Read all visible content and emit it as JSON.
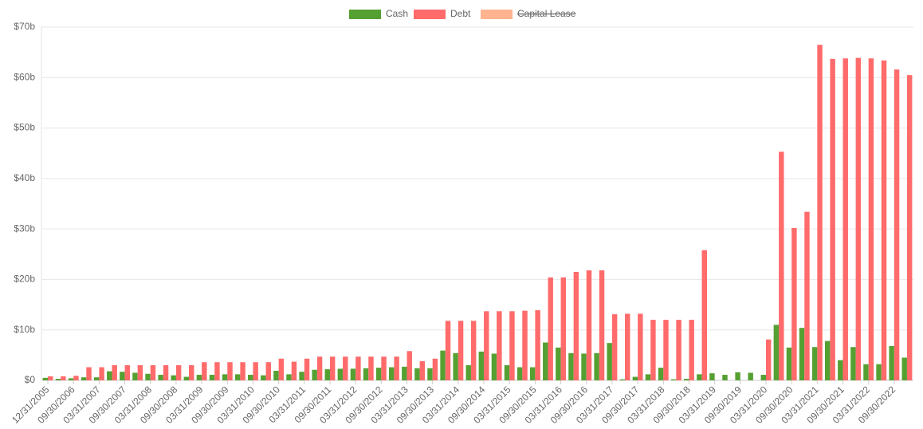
{
  "chart_data": {
    "type": "bar",
    "categories": [
      "12/31/2005",
      null,
      "09/30/2006",
      null,
      "03/31/2007",
      null,
      "09/30/2007",
      null,
      "03/31/2008",
      null,
      "09/30/2008",
      null,
      "03/31/2009",
      null,
      "09/30/2009",
      null,
      "03/31/2010",
      null,
      "09/30/2010",
      null,
      "03/31/2011",
      null,
      "09/30/2011",
      null,
      "03/31/2012",
      null,
      "09/30/2012",
      null,
      "03/31/2013",
      null,
      "09/30/2013",
      null,
      "03/31/2014",
      null,
      "09/30/2014",
      null,
      "03/31/2015",
      null,
      "09/30/2015",
      null,
      "03/31/2016",
      null,
      "09/30/2016",
      null,
      "03/31/2017",
      null,
      "09/30/2017",
      null,
      "03/31/2018",
      null,
      "09/30/2018",
      null,
      "03/31/2019",
      null,
      "09/30/2019",
      null,
      "03/31/2020",
      null,
      "09/30/2020",
      null,
      "03/31/2021",
      null,
      "09/30/2021",
      null,
      "03/31/2022",
      null,
      "09/30/2022",
      null
    ],
    "series": [
      {
        "name": "Cash",
        "color": "#55a032",
        "values": [
          0.5,
          0.3,
          0.4,
          0.6,
          0.6,
          1.8,
          1.7,
          1.5,
          1.3,
          1.1,
          1.0,
          0.7,
          1.1,
          1.1,
          1.2,
          1.2,
          1.1,
          1.0,
          1.9,
          1.2,
          1.7,
          2.1,
          2.2,
          2.3,
          2.3,
          2.4,
          2.5,
          2.6,
          2.7,
          2.4,
          2.4,
          5.9,
          5.4,
          3.0,
          5.7,
          5.3,
          3.0,
          2.6,
          2.6,
          7.5,
          6.5,
          5.4,
          5.3,
          5.4,
          7.4,
          0.2,
          0.7,
          1.2,
          2.5,
          0.2,
          0.3,
          1.2,
          1.4,
          1.1,
          1.6,
          1.5,
          1.1,
          11.0,
          6.5,
          10.4,
          6.6,
          7.8,
          4.0,
          6.6,
          3.2,
          3.2,
          6.8,
          4.5
        ]
      },
      {
        "name": "Debt",
        "color": "#ff6b6b",
        "values": [
          0.8,
          0.8,
          0.9,
          2.6,
          2.6,
          3.0,
          3.0,
          3.0,
          3.0,
          3.0,
          3.0,
          3.0,
          3.6,
          3.6,
          3.6,
          3.6,
          3.6,
          3.6,
          4.3,
          3.7,
          4.3,
          4.7,
          4.7,
          4.7,
          4.7,
          4.7,
          4.7,
          4.7,
          5.8,
          3.8,
          4.3,
          11.8,
          11.8,
          11.8,
          13.7,
          13.7,
          13.7,
          13.8,
          13.9,
          20.4,
          20.4,
          21.5,
          21.8,
          21.8,
          13.1,
          13.2,
          13.2,
          12.0,
          12.0,
          12.0,
          12.0,
          25.8,
          0,
          0,
          0,
          0,
          8.1,
          45.3,
          30.2,
          33.4,
          66.5,
          63.7,
          63.8,
          63.9,
          63.8,
          63.4,
          61.6,
          60.5
        ]
      },
      {
        "name": "Capital Lease",
        "color": "#ffb48f",
        "hidden": true
      }
    ],
    "ylim": [
      0,
      70
    ],
    "yticks": [
      {
        "value": 0,
        "label": "$0"
      },
      {
        "value": 10,
        "label": "$10b"
      },
      {
        "value": 20,
        "label": "$20b"
      },
      {
        "value": 30,
        "label": "$30b"
      },
      {
        "value": 40,
        "label": "$40b"
      },
      {
        "value": 50,
        "label": "$50b"
      },
      {
        "value": 60,
        "label": "$60b"
      },
      {
        "value": 70,
        "label": "$70b"
      }
    ],
    "grid": true,
    "legend": "top"
  }
}
